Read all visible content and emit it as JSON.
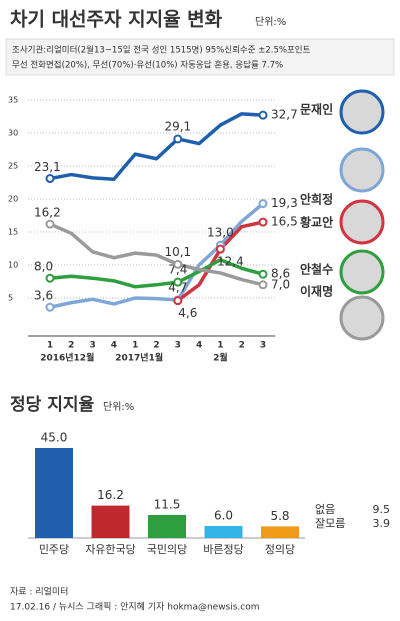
{
  "header": {
    "title": "차기 대선주자 지지율 변화",
    "unit": "단위:%",
    "notes": [
      "조사기관:리얼미터(2월13~15일 전국 성인 1515명) 95%신뢰수준 ±2.5%포인트",
      "무선 전화면접(20%), 무선(70%)·유선(10%) 자동응답 혼용, 응답률 7.7%"
    ]
  },
  "chart_data": [
    {
      "type": "line",
      "categories": [
        "1",
        "2",
        "3",
        "4",
        "1",
        "2",
        "3",
        "4",
        "1",
        "2",
        "3"
      ],
      "x_group_labels": [
        "2016년12월",
        "2017년1월",
        "2월"
      ],
      "ylim": [
        0,
        35
      ],
      "yticks": [
        5,
        10,
        15,
        20,
        25,
        30,
        35
      ],
      "grid": true,
      "series": [
        {
          "name": "문재인",
          "color": "#1f5fae",
          "values": [
            23.1,
            23.7,
            23.2,
            23.0,
            26.8,
            26.1,
            29.1,
            28.4,
            31.2,
            32.9,
            32.7
          ],
          "value_labels": [
            "23,1",
            null,
            null,
            null,
            null,
            null,
            "29,1",
            null,
            null,
            null,
            "32,7"
          ]
        },
        {
          "name": "안희정",
          "color": "#7ea6d6",
          "values": [
            3.6,
            4.3,
            4.8,
            4.1,
            5.0,
            4.9,
            4.7,
            10.0,
            13.0,
            16.6,
            19.3
          ],
          "value_labels": [
            "3,6",
            null,
            null,
            null,
            null,
            null,
            "4,7",
            null,
            "13,0",
            null,
            "19,3"
          ]
        },
        {
          "name": "황교안",
          "color": "#d0343f",
          "values": [
            null,
            null,
            null,
            null,
            null,
            null,
            4.6,
            7.0,
            12.4,
            15.8,
            16.5
          ],
          "value_labels": [
            null,
            null,
            null,
            null,
            null,
            null,
            "4,6",
            null,
            "12,4",
            null,
            "16,5"
          ]
        },
        {
          "name": "안철수",
          "color": "#2e9e3e",
          "values": [
            8.0,
            8.3,
            8.0,
            7.6,
            6.7,
            7.0,
            7.4,
            9.0,
            10.8,
            9.5,
            8.6
          ],
          "value_labels": [
            "8,0",
            null,
            null,
            null,
            null,
            null,
            "7,4",
            null,
            null,
            null,
            "8,6"
          ]
        },
        {
          "name": "이재명",
          "color": "#9a9a9a",
          "values": [
            16.2,
            14.8,
            12.0,
            11.1,
            11.8,
            11.5,
            10.1,
            9.3,
            8.8,
            7.8,
            7.0
          ],
          "value_labels": [
            "16,2",
            null,
            null,
            null,
            null,
            null,
            "10,1",
            null,
            null,
            null,
            "7,0"
          ]
        }
      ]
    },
    {
      "type": "bar",
      "title": "정당 지지율",
      "unit": "단위:%",
      "categories": [
        "민주당",
        "자유한국당",
        "국민의당",
        "바른정당",
        "정의당"
      ],
      "values": [
        45.0,
        16.2,
        11.5,
        6.0,
        5.8
      ],
      "value_labels": [
        "45.0",
        "16.2",
        "11.5",
        "6.0",
        "5.8"
      ],
      "colors": [
        "#1f5fae",
        "#c0282f",
        "#2e9e3e",
        "#33b3e6",
        "#f09a1a"
      ],
      "ylim": [
        0,
        48
      ],
      "others": [
        {
          "label": "없음",
          "value": 9.5
        },
        {
          "label": "잘모름",
          "value": 3.9
        }
      ]
    }
  ],
  "footer": {
    "source": "자료 : 리얼미터",
    "credit": "17.02.16 / 뉴시스 그래픽 : 안지혜 기자 hokma@newsis.com"
  }
}
